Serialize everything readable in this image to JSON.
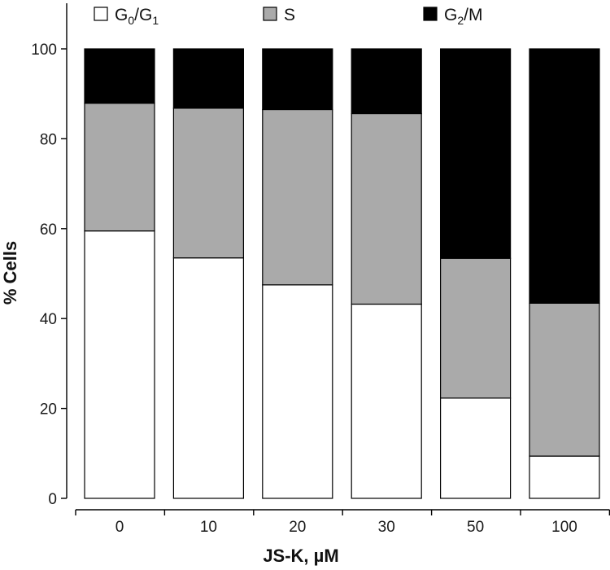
{
  "chart_data": {
    "type": "bar",
    "stacked": true,
    "categories": [
      "0",
      "10",
      "20",
      "30",
      "50",
      "100"
    ],
    "series": [
      {
        "name": "G0/G1",
        "name_base": "G",
        "name_parts": [
          [
            "0",
            "/G"
          ],
          [
            "1",
            ""
          ]
        ],
        "color": "#ffffff",
        "values": [
          59.5,
          53.5,
          47.5,
          43.2,
          22.3,
          9.4
        ]
      },
      {
        "name": "S",
        "color": "#aaaaaa",
        "values": [
          28.4,
          33.3,
          39.0,
          42.4,
          31.1,
          34.0
        ]
      },
      {
        "name": "G2/M",
        "name_base": "G",
        "name_parts": [
          [
            "2",
            "/M"
          ]
        ],
        "color": "#000000",
        "values": [
          12.1,
          13.2,
          13.5,
          14.4,
          46.6,
          56.6
        ]
      }
    ],
    "ylabel": "% Cells",
    "xlabel": "JS-K,  µM",
    "ylim": [
      0,
      100
    ],
    "yticks": [
      "0",
      "20",
      "40",
      "60",
      "80",
      "100"
    ],
    "grid": false,
    "legend": "top"
  }
}
